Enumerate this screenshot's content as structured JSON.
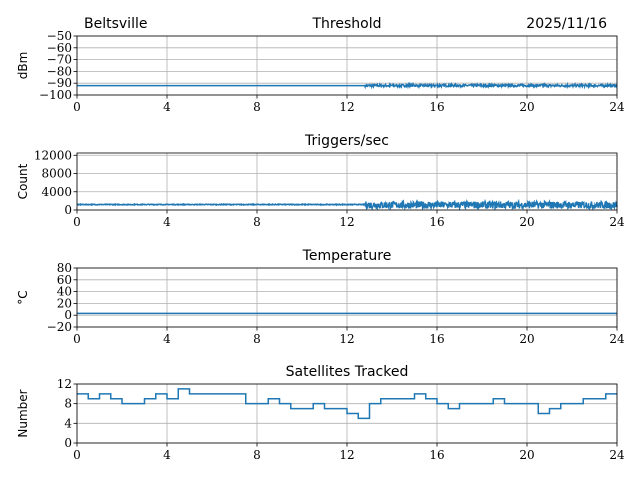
{
  "header": {
    "site": "Beltsville",
    "date": "2025/11/16"
  },
  "colors": {
    "series": "#1f77b4",
    "grid": "#b0b0b0"
  },
  "chart_data": [
    {
      "type": "line",
      "title": "Threshold",
      "ylabel": "dBm",
      "xlim": [
        0,
        24
      ],
      "ylim": [
        -100,
        -50
      ],
      "xticks": [
        "0",
        "4",
        "8",
        "12",
        "16",
        "20",
        "24"
      ],
      "yticks": [
        "−50",
        "−60",
        "−70",
        "−80",
        "−90",
        "−100"
      ],
      "ytick_values": [
        -50,
        -60,
        -70,
        -80,
        -90,
        -100
      ],
      "grid": true,
      "series": [
        {
          "name": "threshold",
          "x": [
            0,
            12.8,
            24
          ],
          "y": [
            -92,
            -92,
            -92
          ],
          "noise_after": 12.8,
          "noise_range": [
            -93,
            -91
          ]
        }
      ]
    },
    {
      "type": "line",
      "title": "Triggers/sec",
      "ylabel": "Count",
      "xlim": [
        0,
        24
      ],
      "ylim": [
        0,
        12500
      ],
      "xticks": [
        "0",
        "4",
        "8",
        "12",
        "16",
        "20",
        "24"
      ],
      "yticks": [
        "12000",
        "8000",
        "4000",
        "0"
      ],
      "ytick_values": [
        12000,
        8000,
        4000,
        0
      ],
      "grid": true,
      "series": [
        {
          "name": "triggers",
          "x": [
            0,
            12.8,
            24
          ],
          "y": [
            1200,
            1150,
            1150
          ],
          "noise_before_range": [
            1000,
            1400
          ],
          "noise_after": 12.8,
          "noise_range": [
            300,
            1900
          ]
        }
      ]
    },
    {
      "type": "line",
      "title": "Temperature",
      "ylabel": "°C",
      "xlim": [
        0,
        24
      ],
      "ylim": [
        -20,
        80
      ],
      "xticks": [
        "0",
        "4",
        "8",
        "12",
        "16",
        "20",
        "24"
      ],
      "yticks": [
        "80",
        "60",
        "40",
        "20",
        "0",
        "−20"
      ],
      "ytick_values": [
        80,
        60,
        40,
        20,
        0,
        -20
      ],
      "grid": true,
      "series": [
        {
          "name": "temperature",
          "x": [
            0,
            24
          ],
          "y": [
            3,
            3
          ]
        }
      ]
    },
    {
      "type": "line",
      "title": "Satellites Tracked",
      "ylabel": "Number",
      "xlim": [
        0,
        24
      ],
      "ylim": [
        0,
        12
      ],
      "xticks": [
        "0",
        "4",
        "8",
        "12",
        "16",
        "20",
        "24"
      ],
      "yticks": [
        "12",
        "8",
        "4",
        "0"
      ],
      "ytick_values": [
        12,
        8,
        4,
        0
      ],
      "grid": true,
      "series": [
        {
          "name": "satellites",
          "step": true,
          "x": [
            0,
            0.5,
            1,
            1.5,
            2,
            2.5,
            3,
            3.5,
            4,
            4.5,
            5,
            5.5,
            6,
            6.5,
            7,
            7.5,
            8,
            8.5,
            9,
            9.5,
            10,
            10.5,
            11,
            11.5,
            12,
            12.5,
            13,
            13.5,
            14,
            14.5,
            15,
            15.5,
            16,
            16.5,
            17,
            17.5,
            18,
            18.5,
            19,
            19.5,
            20,
            20.5,
            21,
            21.5,
            22,
            22.5,
            23,
            23.5,
            24
          ],
          "y": [
            10,
            9,
            10,
            9,
            8,
            8,
            9,
            10,
            9,
            11,
            10,
            10,
            10,
            10,
            10,
            8,
            8,
            9,
            8,
            7,
            7,
            8,
            7,
            7,
            6,
            5,
            8,
            9,
            9,
            9,
            10,
            9,
            8,
            7,
            8,
            8,
            8,
            9,
            8,
            8,
            8,
            6,
            7,
            8,
            8,
            9,
            9,
            10,
            10
          ]
        }
      ]
    }
  ]
}
